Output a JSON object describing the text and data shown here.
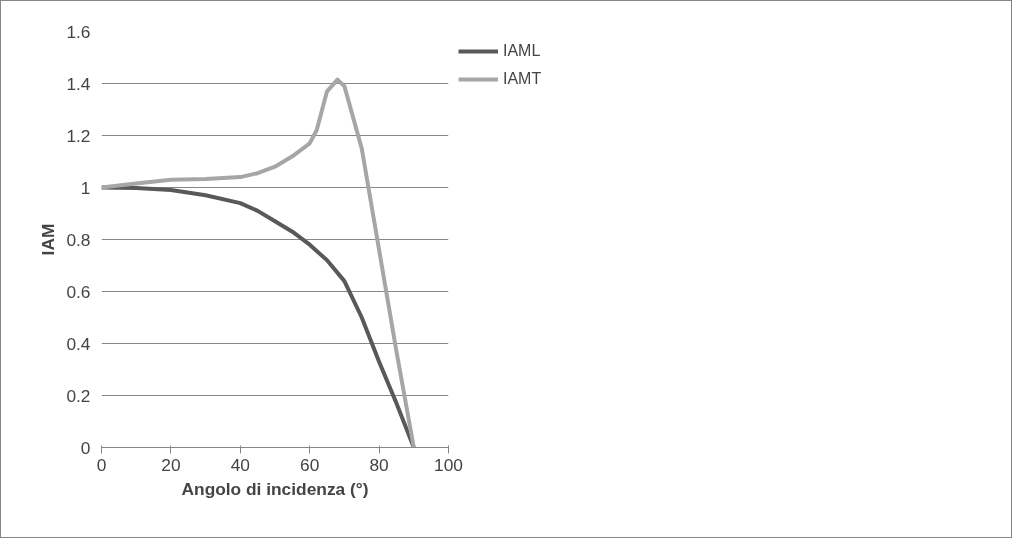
{
  "chart_data": {
    "type": "line",
    "xlabel": "Angolo di incidenza (°)",
    "ylabel": "IAM",
    "xlim": [
      0,
      100
    ],
    "xticks": [
      0,
      20,
      40,
      60,
      80,
      100
    ],
    "ylim": [
      0,
      1.6
    ],
    "yticks": [
      0,
      0.2,
      0.4,
      0.6,
      0.8,
      1,
      1.2,
      1.4,
      1.6
    ],
    "grid": "y",
    "legend": "right",
    "marker": "none",
    "line_style": "solid",
    "series": [
      {
        "name": "IAML",
        "color": "#595959",
        "x": [
          0,
          10,
          20,
          30,
          40,
          45,
          50,
          55,
          60,
          65,
          70,
          75,
          80,
          85,
          90
        ],
        "values": [
          1,
          0.998,
          0.99,
          0.97,
          0.94,
          0.91,
          0.87,
          0.83,
          0.78,
          0.72,
          0.64,
          0.5,
          0.33,
          0.17,
          0
        ]
      },
      {
        "name": "IAMT",
        "color": "#a6a6a6",
        "x": [
          0,
          10,
          20,
          30,
          40,
          45,
          50,
          55,
          60,
          62,
          65,
          68,
          70,
          75,
          80,
          85,
          90
        ],
        "values": [
          1,
          1.015,
          1.03,
          1.033,
          1.04,
          1.055,
          1.08,
          1.12,
          1.17,
          1.22,
          1.37,
          1.415,
          1.39,
          1.15,
          0.76,
          0.37,
          0
        ]
      }
    ]
  }
}
